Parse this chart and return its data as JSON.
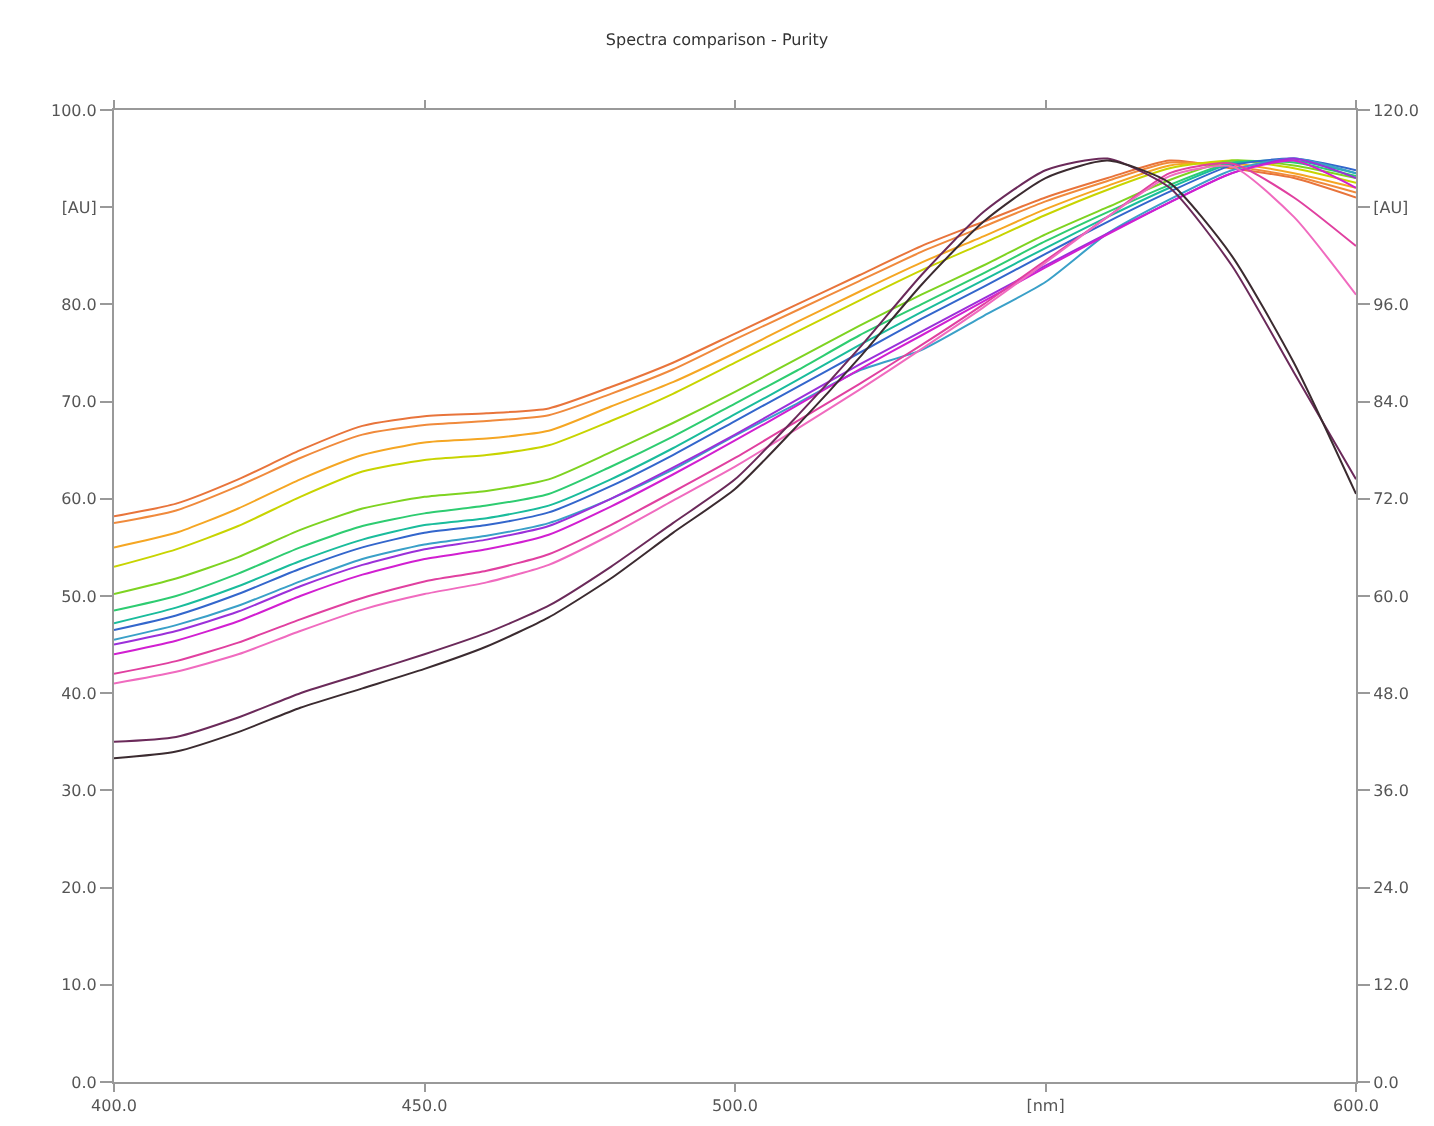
{
  "chart_data": {
    "type": "line",
    "title": "Spectra comparison - Purity",
    "x": [
      400,
      410,
      420,
      430,
      440,
      450,
      460,
      470,
      480,
      490,
      500,
      510,
      520,
      530,
      540,
      550,
      560,
      570,
      580,
      590,
      600
    ],
    "xlim": [
      400,
      600
    ],
    "xticks": [
      {
        "value": 400,
        "label": "400.0"
      },
      {
        "value": 450,
        "label": "450.0"
      },
      {
        "value": 500,
        "label": "500.0"
      },
      {
        "value": 550,
        "label": "[nm]"
      },
      {
        "value": 600,
        "label": "600.0"
      }
    ],
    "ylim": [
      0,
      100
    ],
    "yticks": [
      {
        "value": 0,
        "label": "0.0"
      },
      {
        "value": 10,
        "label": "10.0"
      },
      {
        "value": 20,
        "label": "20.0"
      },
      {
        "value": 30,
        "label": "30.0"
      },
      {
        "value": 40,
        "label": "40.0"
      },
      {
        "value": 50,
        "label": "50.0"
      },
      {
        "value": 60,
        "label": "60.0"
      },
      {
        "value": 70,
        "label": "70.0"
      },
      {
        "value": 80,
        "label": "80.0"
      },
      {
        "value": 90,
        "label": "[AU]"
      },
      {
        "value": 100,
        "label": "100.0"
      }
    ],
    "y2lim": [
      0,
      120
    ],
    "y2ticks": [
      {
        "value": 0,
        "label": "0.0"
      },
      {
        "value": 12,
        "label": "12.0"
      },
      {
        "value": 24,
        "label": "24.0"
      },
      {
        "value": 36,
        "label": "36.0"
      },
      {
        "value": 48,
        "label": "48.0"
      },
      {
        "value": 60,
        "label": "60.0"
      },
      {
        "value": 72,
        "label": "72.0"
      },
      {
        "value": 84,
        "label": "84.0"
      },
      {
        "value": 96,
        "label": "96.0"
      },
      {
        "value": 108,
        "label": "[AU]"
      },
      {
        "value": 120,
        "label": "120.0"
      }
    ],
    "marker": "none",
    "line_style": "solid",
    "series": [
      {
        "color": "#e8743b",
        "values": [
          58.2,
          59.5,
          62,
          65,
          67.5,
          68.5,
          68.8,
          69.3,
          71.5,
          74,
          77,
          80,
          83,
          86,
          88.5,
          91,
          93,
          94.8,
          94,
          93,
          91
        ]
      },
      {
        "color": "#f08a3c",
        "values": [
          57.5,
          58.8,
          61.3,
          64.2,
          66.6,
          67.6,
          68,
          68.6,
          70.8,
          73.3,
          76.4,
          79.4,
          82.4,
          85.4,
          88,
          90.6,
          92.7,
          94.6,
          94.2,
          93.2,
          91.5
        ]
      },
      {
        "color": "#f5a623",
        "values": [
          55,
          56.5,
          59,
          62,
          64.5,
          65.8,
          66.2,
          67,
          69.5,
          72,
          75,
          78.2,
          81.3,
          84.3,
          87,
          89.8,
          92.2,
          94.3,
          94.5,
          93.5,
          92
        ]
      },
      {
        "color": "#c8d400",
        "values": [
          53,
          54.8,
          57.2,
          60.2,
          62.8,
          64,
          64.5,
          65.5,
          68,
          70.8,
          74,
          77.2,
          80.4,
          83.5,
          86.3,
          89.2,
          91.8,
          94,
          94.8,
          94,
          92.5
        ]
      },
      {
        "color": "#7ed321",
        "values": [
          50.2,
          51.8,
          54,
          56.8,
          59,
          60.2,
          60.8,
          62,
          64.8,
          67.8,
          71,
          74.4,
          77.8,
          81,
          84,
          87.2,
          90,
          92.8,
          94.8,
          94.3,
          93
        ]
      },
      {
        "color": "#2ecc71",
        "values": [
          48.5,
          50,
          52.3,
          55,
          57.2,
          58.5,
          59.3,
          60.5,
          63.3,
          66.4,
          69.8,
          73.2,
          76.8,
          80,
          83.2,
          86.5,
          89.5,
          92.3,
          94.6,
          94.6,
          93.2
        ]
      },
      {
        "color": "#1abc9c",
        "values": [
          47.2,
          48.8,
          51,
          53.6,
          55.8,
          57.3,
          58,
          59.3,
          62,
          65.2,
          68.7,
          72.2,
          75.8,
          79.2,
          82.5,
          85.8,
          89,
          92,
          94.5,
          94.8,
          93.5
        ]
      },
      {
        "color": "#3366cc",
        "values": [
          46.5,
          48,
          50.2,
          52.8,
          55,
          56.5,
          57.3,
          58.6,
          61.3,
          64.5,
          68,
          71.5,
          75,
          78.5,
          81.8,
          85.2,
          88.5,
          91.6,
          94.3,
          95,
          93.8
        ]
      },
      {
        "color": "#3aa0c8",
        "values": [
          45.5,
          47,
          49,
          51.5,
          53.8,
          55.3,
          56.2,
          57.5,
          60,
          63,
          66.5,
          69.8,
          73.2,
          75.3,
          78.8,
          82.3,
          87.3,
          90.8,
          93.8,
          95,
          93.5
        ]
      },
      {
        "color": "#9b30d9",
        "values": [
          45,
          46.4,
          48.4,
          51,
          53.2,
          54.8,
          55.8,
          57.2,
          60,
          63.2,
          66.6,
          70.2,
          73.8,
          77.2,
          80.6,
          84,
          87.3,
          90.5,
          93.5,
          95,
          93
        ]
      },
      {
        "color": "#d11fd1",
        "values": [
          44,
          45.4,
          47.4,
          50,
          52.2,
          53.8,
          54.8,
          56.3,
          59.2,
          62.5,
          66,
          69.6,
          73.3,
          76.8,
          80.3,
          83.8,
          87.2,
          90.5,
          93.5,
          94.8,
          92
        ]
      },
      {
        "color": "#e040a0",
        "values": [
          42,
          43.3,
          45.2,
          47.6,
          49.8,
          51.5,
          52.6,
          54.3,
          57.3,
          60.7,
          64.2,
          68,
          71.8,
          75.8,
          80,
          84.5,
          89,
          93.5,
          94.5,
          91,
          86
        ]
      },
      {
        "color": "#f06bbf",
        "values": [
          41,
          42.2,
          44,
          46.4,
          48.6,
          50.2,
          51.4,
          53.2,
          56.3,
          59.8,
          63.3,
          67.2,
          71.2,
          75.4,
          79.7,
          84.3,
          89,
          93.2,
          94.2,
          89,
          81
        ]
      },
      {
        "color": "#6b2a5a",
        "values": [
          35,
          35.5,
          37.5,
          40,
          42,
          44,
          46.2,
          49,
          53,
          57.5,
          62,
          68.5,
          75.5,
          83,
          89.5,
          93.8,
          95,
          92,
          84,
          73,
          62
        ]
      },
      {
        "color": "#3b2b30",
        "values": [
          33.3,
          34,
          36,
          38.5,
          40.5,
          42.5,
          44.8,
          47.8,
          51.8,
          56.5,
          61,
          67.5,
          74.5,
          82,
          88.5,
          93,
          94.8,
          92.5,
          85,
          74,
          60.5
        ]
      }
    ]
  }
}
